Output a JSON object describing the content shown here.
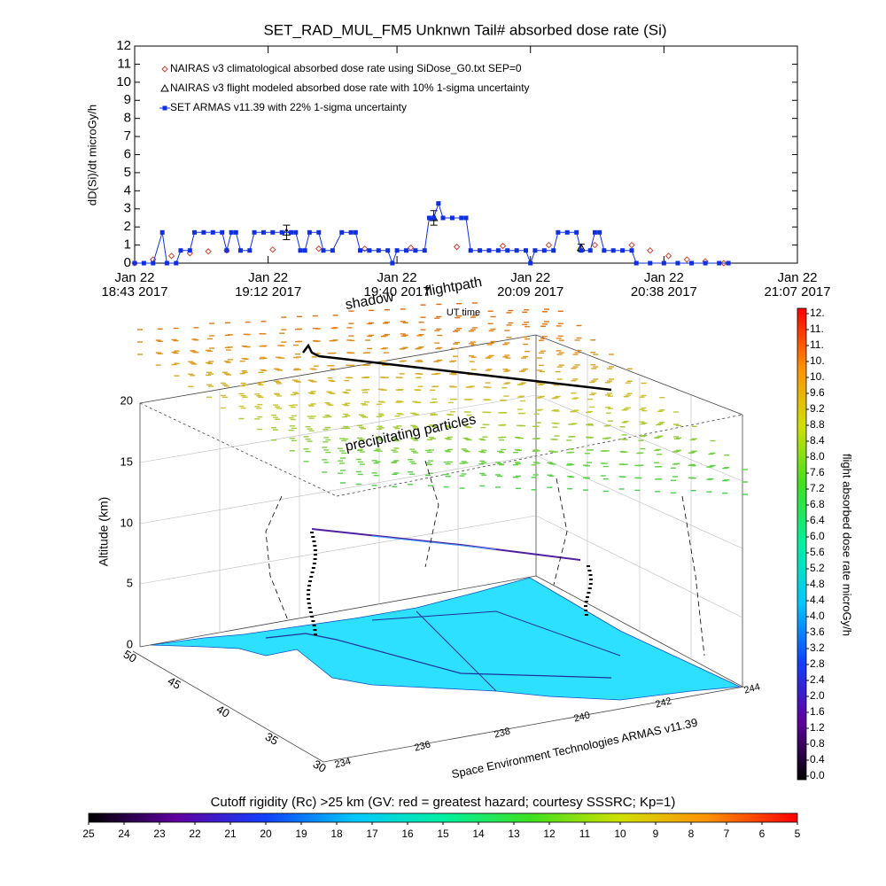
{
  "chart_data": [
    {
      "type": "line",
      "title": "SET_RAD_MUL_FM5 Unknwn Tail#  absorbed dose rate (Si)",
      "y_label": "dD(Si)/dt microGy/h",
      "x_label": "UT time",
      "xlim": [
        1123,
        1267
      ],
      "xticks": [
        {
          "value": 1123,
          "label": "Jan 22\n18:43 2017"
        },
        {
          "value": 1152,
          "label": "Jan 22\n19:12 2017"
        },
        {
          "value": 1180,
          "label": "Jan 22\n19:40 2017"
        },
        {
          "value": 1209,
          "label": "Jan 22\n20:09 2017"
        },
        {
          "value": 1238,
          "label": "Jan 22\n20:38 2017"
        },
        {
          "value": 1267,
          "label": "Jan 22\n21:07 2017"
        }
      ],
      "ylim": [
        0,
        12
      ],
      "yticks": [
        0,
        1,
        2,
        3,
        4,
        5,
        6,
        7,
        8,
        9,
        10,
        11,
        12
      ],
      "legend": "upper left",
      "series": [
        {
          "name": "NAIRAS v3 climatological absorbed dose rate using SiDose_G0.txt SEP=0",
          "color": "#d04030",
          "marker": "diamond",
          "line": false,
          "x": [
            1123,
            1127,
            1131,
            1135,
            1139,
            1143,
            1153,
            1163,
            1173,
            1183,
            1193,
            1203,
            1213,
            1223,
            1231,
            1235,
            1239,
            1243,
            1247,
            1251
          ],
          "values": [
            0,
            0.2,
            0.4,
            0.55,
            0.65,
            0.7,
            0.75,
            0.8,
            0.8,
            0.85,
            0.9,
            0.95,
            1.0,
            1.0,
            1.0,
            0.7,
            0.4,
            0.2,
            0.1,
            0
          ]
        },
        {
          "name": "NAIRAS v3 flight modeled absorbed dose rate with 10% 1-sigma uncertainty",
          "color": "#000000",
          "marker": "triangle",
          "line": false,
          "x": [
            1156,
            1188,
            1220
          ],
          "values": [
            1.7,
            2.5,
            0.85
          ],
          "errors": [
            0.4,
            0.4,
            0.2
          ]
        },
        {
          "name": "SET ARMAS v11.39 with 22% 1-sigma uncertainty",
          "color": "#1030e0",
          "marker": "square",
          "line": true,
          "x": [
            1123,
            1125,
            1127,
            1129,
            1130,
            1132,
            1133,
            1135,
            1136,
            1138,
            1140,
            1142,
            1143,
            1144,
            1145,
            1146,
            1148,
            1149,
            1151,
            1153,
            1155,
            1157,
            1158,
            1159,
            1160,
            1161,
            1163,
            1164,
            1166,
            1168,
            1170,
            1171,
            1172,
            1174,
            1176,
            1178,
            1179,
            1180,
            1182,
            1184,
            1186,
            1187,
            1188,
            1189,
            1190,
            1192,
            1194,
            1195,
            1196,
            1198,
            1200,
            1202,
            1204,
            1206,
            1208,
            1209,
            1210,
            1212,
            1214,
            1215,
            1217,
            1219,
            1220,
            1222,
            1223,
            1224,
            1225,
            1227,
            1229,
            1231,
            1232,
            1235,
            1238,
            1241,
            1244,
            1247,
            1250,
            1252
          ],
          "values": [
            0,
            0,
            0,
            1.7,
            0,
            0,
            0.7,
            0.7,
            1.7,
            1.7,
            1.7,
            1.7,
            0.7,
            1.7,
            1.7,
            0.7,
            0.7,
            1.7,
            1.7,
            1.7,
            1.7,
            1.7,
            1.7,
            0.7,
            0.7,
            1.7,
            1.7,
            0.7,
            0.7,
            1.7,
            1.7,
            1.7,
            0.7,
            0.7,
            0.7,
            0.7,
            0,
            0.7,
            0.7,
            0.7,
            0.7,
            2.5,
            2.5,
            3.3,
            2.5,
            2.5,
            2.5,
            2.5,
            0.7,
            0.7,
            0.7,
            0.7,
            0.7,
            0.7,
            0.7,
            0,
            0.7,
            0.7,
            0.7,
            1.7,
            1.7,
            1.7,
            0.7,
            0.7,
            1.7,
            1.7,
            0.7,
            0.7,
            0.7,
            0.7,
            0,
            0,
            0,
            0,
            0,
            0,
            0,
            0
          ]
        }
      ]
    },
    {
      "type": "colorbar",
      "orientation": "vertical",
      "title": "flight absorbed dose rate microGy/h",
      "ylim": [
        0,
        11.6
      ],
      "yticks": [
        {
          "value": 0,
          "label": "0.0"
        },
        0.4,
        0.8,
        1.2,
        1.6,
        {
          "value": 2,
          "label": "2.0"
        },
        2.4,
        2.8,
        3.2,
        3.6,
        {
          "value": 4,
          "label": "4.0"
        },
        4.4,
        4.8,
        5.2,
        5.6,
        {
          "value": 6,
          "label": "6.0"
        },
        6.4,
        6.8,
        7.2,
        7.6,
        {
          "value": 8,
          "label": "8.0"
        },
        8.4,
        8.8,
        9.2,
        9.6,
        {
          "value": 10,
          "label": "10."
        },
        {
          "value": 10.4,
          "label": "10."
        },
        {
          "value": 10.8,
          "label": "11."
        },
        {
          "value": 11.2,
          "label": "11."
        },
        {
          "value": 11.6,
          "label": "12."
        }
      ],
      "colormap": [
        "#000000",
        "#6000a0",
        "#1040ff",
        "#00c8ff",
        "#00f0a0",
        "#40e020",
        "#d0e000",
        "#ff9000",
        "#ff0000"
      ]
    },
    {
      "type": "colorbar",
      "orientation": "horizontal",
      "title": "Cutoff rigidity (Rc) >25 km (GV: red = greatest hazard; courtesy SSSRC; Kp=1)",
      "xlim": [
        25,
        5
      ],
      "xticks": [
        25,
        24,
        23,
        22,
        21,
        20,
        19,
        18,
        17,
        16,
        15,
        14,
        13,
        12,
        11,
        10,
        9,
        8,
        7,
        6,
        5
      ],
      "colormap": [
        "#000000",
        "#6000a0",
        "#1040ff",
        "#00c8ff",
        "#00f0a0",
        "#40e020",
        "#d0e000",
        "#ff9000",
        "#ff0000"
      ]
    }
  ],
  "scene": {
    "z_label": "Altitude (km)",
    "z_ticks": [
      20,
      15,
      10,
      5,
      0
    ],
    "lat_ticks": [
      50,
      45,
      40,
      35,
      30
    ],
    "lon_ticks": [
      234,
      236,
      238,
      240,
      242,
      244
    ],
    "credit": "Space Environment Technologies ARMAS v11.39",
    "annotations": [
      "precipitating particles",
      "shadow",
      "flightpath"
    ]
  }
}
